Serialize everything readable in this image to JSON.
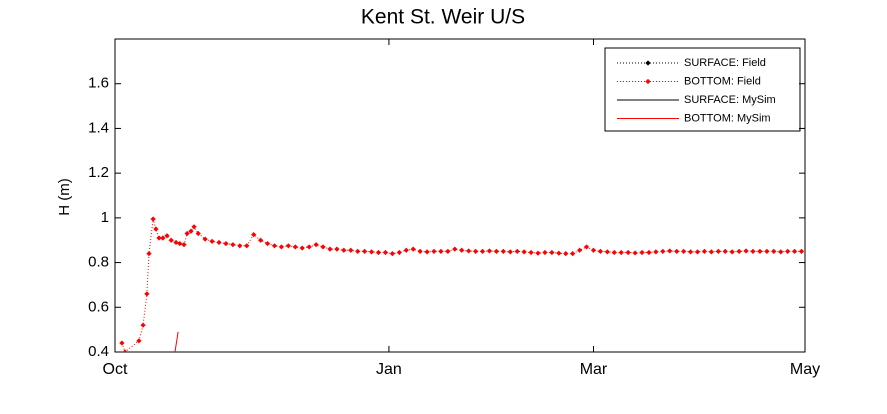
{
  "chart_data": {
    "type": "line",
    "title": "Kent St. Weir U/S",
    "y_label": "H (m)",
    "xlim": [
      0,
      199
    ],
    "xticks": [
      {
        "value": 0,
        "label": "Oct"
      },
      {
        "value": 79,
        "label": "Jan"
      },
      {
        "value": 138,
        "label": "Mar"
      },
      {
        "value": 199,
        "label": "May"
      }
    ],
    "ylim": [
      0.4,
      1.8
    ],
    "yticks": [
      0.4,
      0.6,
      0.8,
      1,
      1.2,
      1.4,
      1.6
    ],
    "legend": "upper right",
    "series": [
      {
        "name": "SURFACE: Field",
        "color": "#000000",
        "style": "dotted-marker",
        "x": [],
        "values": []
      },
      {
        "name": "BOTTOM: Field",
        "color": "#ff0000",
        "style": "dotted-marker",
        "x": [
          2.0,
          2.9,
          6.9,
          8.1,
          9.2,
          9.8,
          11.0,
          11.8,
          12.7,
          13.8,
          15.0,
          16.2,
          17.6,
          18.7,
          19.9,
          20.8,
          21.9,
          22.8,
          24,
          26,
          28,
          30,
          32,
          34,
          36,
          38,
          40,
          42,
          44,
          46,
          48,
          50,
          52,
          54,
          56,
          58,
          60,
          62,
          64,
          66,
          68,
          70,
          72,
          74,
          76,
          78,
          80,
          82,
          84,
          86,
          88,
          90,
          92,
          94,
          96,
          98,
          100,
          102,
          104,
          106,
          108,
          110,
          112,
          114,
          116,
          118,
          120,
          122,
          124,
          126,
          128,
          130,
          132,
          134,
          136,
          138,
          140,
          142,
          144,
          146,
          148,
          150,
          152,
          154,
          156,
          158,
          160,
          162,
          164,
          166,
          168,
          170,
          172,
          174,
          176,
          178,
          180,
          182,
          184,
          186,
          188,
          190,
          192,
          194,
          196,
          198
        ],
        "values": [
          0.44,
          0.4,
          0.45,
          0.52,
          0.66,
          0.84,
          0.995,
          0.95,
          0.91,
          0.91,
          0.92,
          0.9,
          0.89,
          0.885,
          0.88,
          0.93,
          0.94,
          0.96,
          0.93,
          0.905,
          0.895,
          0.89,
          0.885,
          0.88,
          0.875,
          0.875,
          0.925,
          0.9,
          0.885,
          0.875,
          0.87,
          0.875,
          0.87,
          0.865,
          0.87,
          0.88,
          0.87,
          0.86,
          0.86,
          0.855,
          0.855,
          0.85,
          0.85,
          0.848,
          0.845,
          0.845,
          0.84,
          0.845,
          0.855,
          0.86,
          0.85,
          0.848,
          0.85,
          0.85,
          0.85,
          0.86,
          0.855,
          0.852,
          0.85,
          0.85,
          0.852,
          0.85,
          0.85,
          0.848,
          0.85,
          0.848,
          0.845,
          0.842,
          0.845,
          0.845,
          0.842,
          0.84,
          0.84,
          0.855,
          0.87,
          0.855,
          0.85,
          0.848,
          0.845,
          0.845,
          0.845,
          0.843,
          0.845,
          0.845,
          0.848,
          0.85,
          0.852,
          0.85,
          0.85,
          0.848,
          0.848,
          0.85,
          0.848,
          0.85,
          0.85,
          0.848,
          0.85,
          0.852,
          0.85,
          0.85,
          0.85,
          0.85,
          0.848,
          0.85,
          0.85,
          0.85
        ]
      },
      {
        "name": "SURFACE: MySim",
        "color": "#000000",
        "style": "solid",
        "x": [],
        "values": []
      },
      {
        "name": "BOTTOM: MySim",
        "color": "#ff0000",
        "style": "solid",
        "x": [
          17.3,
          18.2
        ],
        "values": [
          0.4,
          0.49
        ]
      }
    ]
  }
}
